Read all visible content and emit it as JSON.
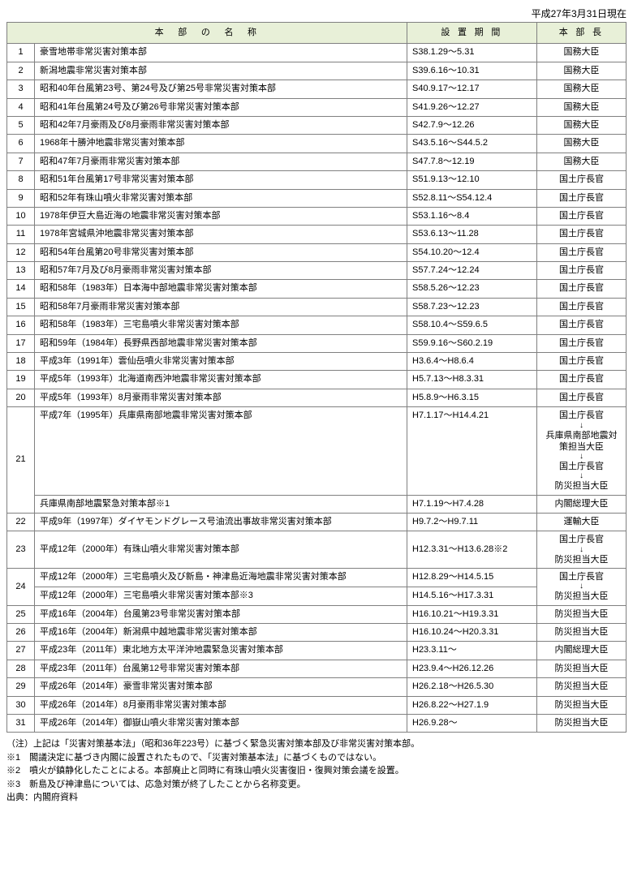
{
  "date_header": "平成27年3月31日現在",
  "columns": {
    "name": "本　部　の　名　称",
    "period": "設 置 期 間",
    "head": "本 部 長"
  },
  "rows": [
    {
      "num": "1",
      "name": "豪雪地帯非常災害対策本部",
      "period": "S38.1.29～5.31",
      "head": "国務大臣"
    },
    {
      "num": "2",
      "name": "新潟地震非常災害対策本部",
      "period": "S39.6.16～10.31",
      "head": "国務大臣"
    },
    {
      "num": "3",
      "name": "昭和40年台風第23号、第24号及び第25号非常災害対策本部",
      "period": "S40.9.17～12.17",
      "head": "国務大臣"
    },
    {
      "num": "4",
      "name": "昭和41年台風第24号及び第26号非常災害対策本部",
      "period": "S41.9.26～12.27",
      "head": "国務大臣"
    },
    {
      "num": "5",
      "name": "昭和42年7月豪雨及び8月豪雨非常災害対策本部",
      "period": "S42.7.9～12.26",
      "head": "国務大臣"
    },
    {
      "num": "6",
      "name": "1968年十勝沖地震非常災害対策本部",
      "period": "S43.5.16～S44.5.2",
      "head": "国務大臣"
    },
    {
      "num": "7",
      "name": "昭和47年7月豪雨非常災害対策本部",
      "period": "S47.7.8～12.19",
      "head": "国務大臣"
    },
    {
      "num": "8",
      "name": "昭和51年台風第17号非常災害対策本部",
      "period": "S51.9.13～12.10",
      "head": "国土庁長官"
    },
    {
      "num": "9",
      "name": "昭和52年有珠山噴火非常災害対策本部",
      "period": "S52.8.11～S54.12.4",
      "head": "国土庁長官"
    },
    {
      "num": "10",
      "name": "1978年伊豆大島近海の地震非常災害対策本部",
      "period": "S53.1.16～8.4",
      "head": "国土庁長官"
    },
    {
      "num": "11",
      "name": "1978年宮城県沖地震非常災害対策本部",
      "period": "S53.6.13～11.28",
      "head": "国土庁長官"
    },
    {
      "num": "12",
      "name": "昭和54年台風第20号非常災害対策本部",
      "period": "S54.10.20～12.4",
      "head": "国土庁長官"
    },
    {
      "num": "13",
      "name": "昭和57年7月及び8月豪雨非常災害対策本部",
      "period": "S57.7.24～12.24",
      "head": "国土庁長官"
    },
    {
      "num": "14",
      "name": "昭和58年（1983年）日本海中部地震非常災害対策本部",
      "period": "S58.5.26～12.23",
      "head": "国土庁長官"
    },
    {
      "num": "15",
      "name": "昭和58年7月豪雨非常災害対策本部",
      "period": "S58.7.23～12.23",
      "head": "国土庁長官"
    },
    {
      "num": "16",
      "name": "昭和58年（1983年）三宅島噴火非常災害対策本部",
      "period": "S58.10.4～S59.6.5",
      "head": "国土庁長官"
    },
    {
      "num": "17",
      "name": "昭和59年（1984年）長野県西部地震非常災害対策本部",
      "period": "S59.9.16～S60.2.19",
      "head": "国土庁長官"
    },
    {
      "num": "18",
      "name": "平成3年（1991年）雲仙岳噴火非常災害対策本部",
      "period": "H3.6.4～H8.6.4",
      "head": "国土庁長官"
    },
    {
      "num": "19",
      "name": "平成5年（1993年）北海道南西沖地震非常災害対策本部",
      "period": "H5.7.13～H8.3.31",
      "head": "国土庁長官"
    },
    {
      "num": "20",
      "name": "平成5年（1993年）8月豪雨非常災害対策本部",
      "period": "H5.8.9～H6.3.15",
      "head": "国土庁長官"
    }
  ],
  "row21": {
    "num": "21",
    "sub1_name": "平成7年（1995年）兵庫県南部地震非常災害対策本部",
    "sub1_period": "H7.1.17～H14.4.21",
    "sub1_heads": [
      "国土庁長官",
      "兵庫県南部地震対策担当大臣",
      "国土庁長官",
      "防災担当大臣"
    ],
    "sub2_name": "兵庫県南部地震緊急対策本部※1",
    "sub2_period": "H7.1.19～H7.4.28",
    "sub2_head": "内閣総理大臣"
  },
  "row22": {
    "num": "22",
    "name": "平成9年（1997年）ダイヤモンドグレース号油流出事故非常災害対策本部",
    "period": "H9.7.2～H9.7.11",
    "head": "運輸大臣"
  },
  "row23": {
    "num": "23",
    "name": "平成12年（2000年）有珠山噴火非常災害対策本部",
    "period": "H12.3.31～H13.6.28※2",
    "heads": [
      "国土庁長官",
      "防災担当大臣"
    ]
  },
  "row24": {
    "num": "24",
    "sub1_name": "平成12年（2000年）三宅島噴火及び新島・神津島近海地震非常災害対策本部",
    "sub1_period": "H12.8.29～H14.5.15",
    "heads": [
      "国土庁長官",
      "防災担当大臣"
    ],
    "sub2_name": "平成12年（2000年）三宅島噴火非常災害対策本部※3",
    "sub2_period": "H14.5.16～H17.3.31"
  },
  "rows_tail": [
    {
      "num": "25",
      "name": "平成16年（2004年）台風第23号非常災害対策本部",
      "period": "H16.10.21～H19.3.31",
      "head": "防災担当大臣"
    },
    {
      "num": "26",
      "name": "平成16年（2004年）新潟県中越地震非常災害対策本部",
      "period": "H16.10.24～H20.3.31",
      "head": "防災担当大臣"
    },
    {
      "num": "27",
      "name": "平成23年（2011年）東北地方太平洋沖地震緊急災害対策本部",
      "period": "H23.3.11～",
      "head": "内閣総理大臣"
    },
    {
      "num": "28",
      "name": "平成23年（2011年）台風第12号非常災害対策本部",
      "period": "H23.9.4～H26.12.26",
      "head": "防災担当大臣"
    },
    {
      "num": "29",
      "name": "平成26年（2014年）豪雪非常災害対策本部",
      "period": "H26.2.18～H26.5.30",
      "head": "防災担当大臣"
    },
    {
      "num": "30",
      "name": "平成26年（2014年）8月豪雨非常災害対策本部",
      "period": "H26.8.22～H27.1.9",
      "head": "防災担当大臣"
    },
    {
      "num": "31",
      "name": "平成26年（2014年）御嶽山噴火非常災害対策本部",
      "period": "H26.9.28～",
      "head": "防災担当大臣"
    }
  ],
  "notes": {
    "n0": "（注）上記は「災害対策基本法」（昭和36年223号）に基づく緊急災害対策本部及び非常災害対策本部。",
    "n1": "※1　閣議決定に基づき内閣に設置されたもので、「災害対策基本法」に基づくものではない。",
    "n2": "※2　噴火が鎮静化したことによる。本部廃止と同時に有珠山噴火災害復旧・復興対策会議を設置。",
    "n3": "※3　新島及び神津島については、応急対策が終了したことから名称変更。",
    "src": "出典：内閣府資料"
  }
}
